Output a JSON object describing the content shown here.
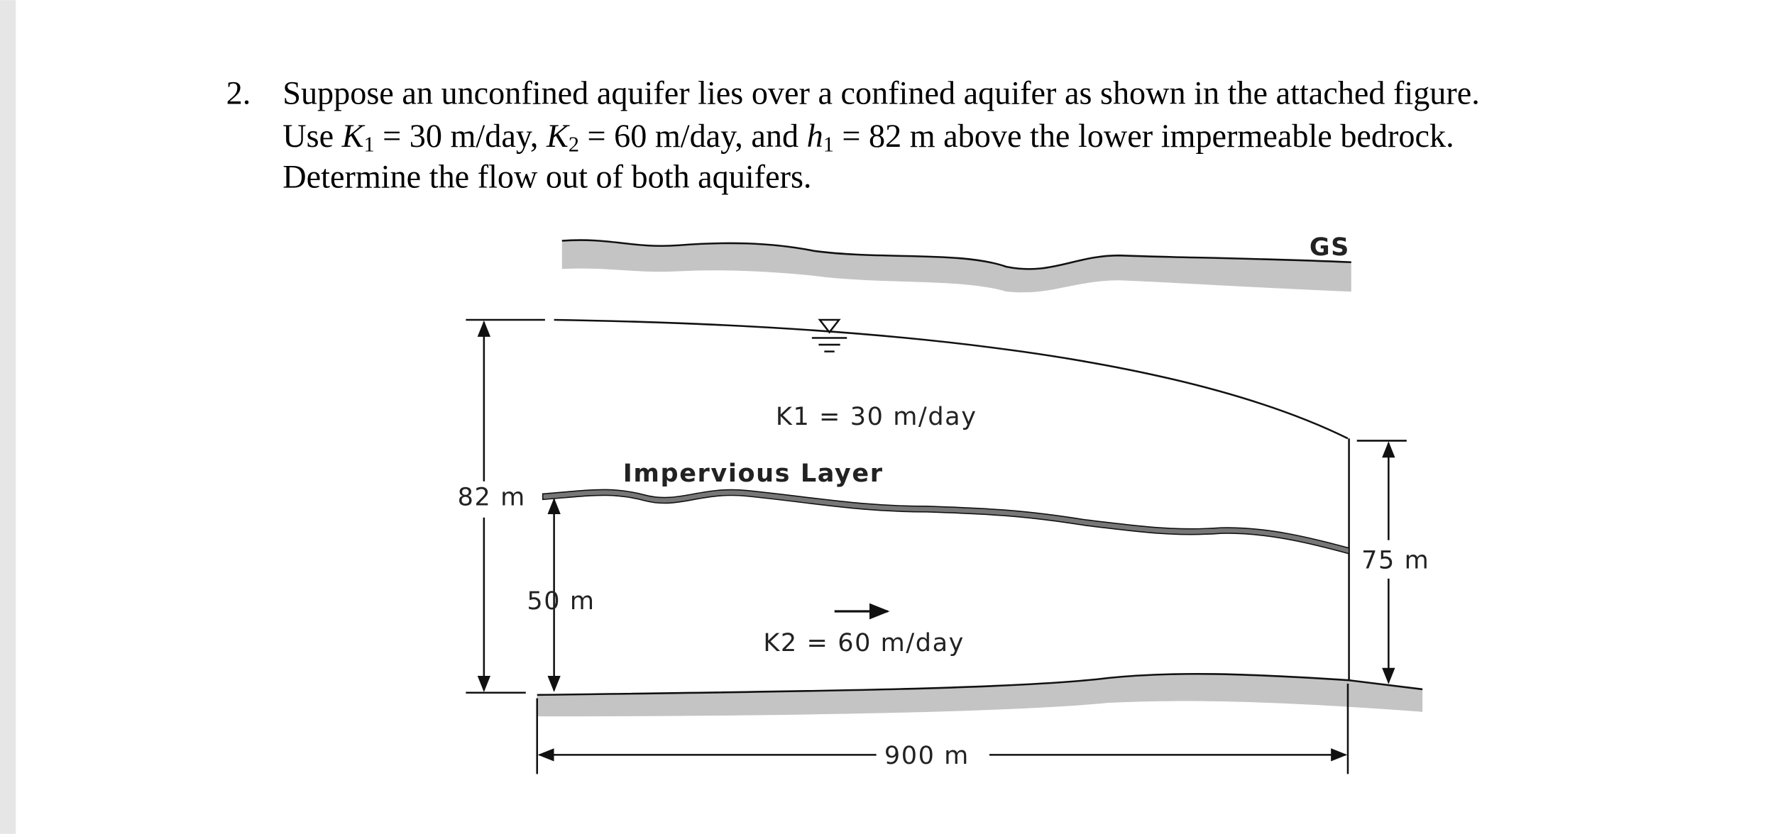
{
  "question": {
    "number": "2.",
    "line1": "Suppose an unconfined aquifer lies over a confined aquifer as shown in the attached figure.",
    "line2": [
      "Use ",
      "K",
      "1",
      " = 30 m/day, ",
      "K",
      "2",
      " = 60 m/day, and ",
      "h",
      "1",
      " = 82 m above the lower impermeable bedrock."
    ],
    "line3": "Determine the flow out of both aquifers."
  },
  "figure": {
    "ground_surface": "GS",
    "k1": "K1 = 30 m/day",
    "impervious": "Impervious Layer",
    "h1": "82 m",
    "b": "50 m",
    "k2": "K2 = 60 m/day",
    "h2": "75 m",
    "length": "900 m"
  }
}
